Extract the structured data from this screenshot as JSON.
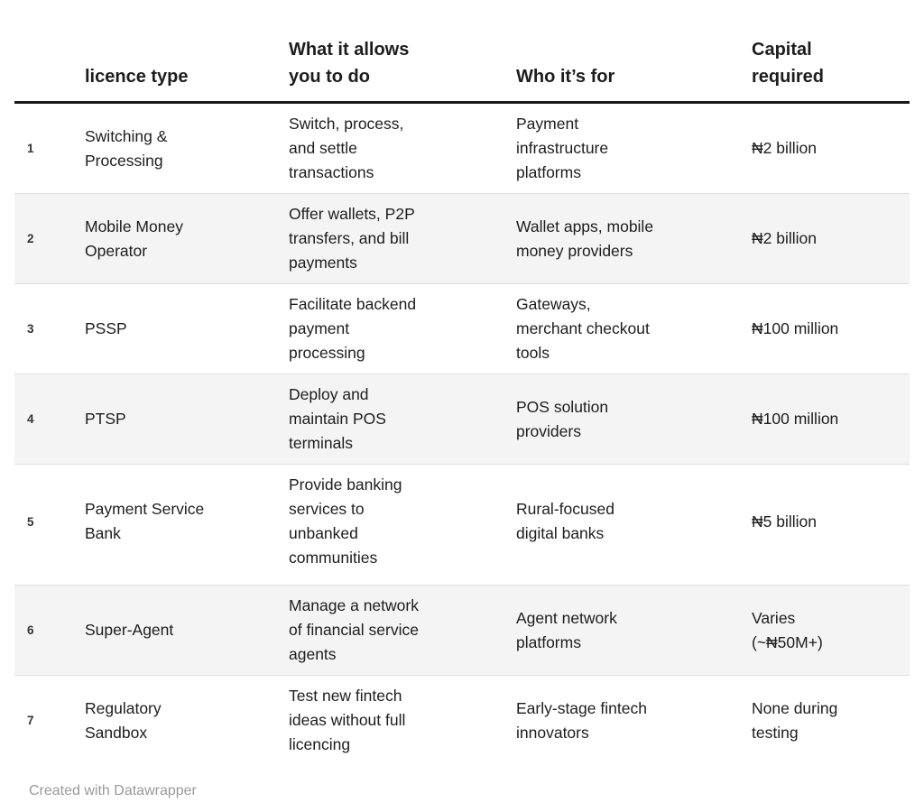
{
  "colors": {
    "text": "#1d1d1d",
    "muted": "#9a9a9a",
    "stripe": "#f4f4f4",
    "divider": "#dedede",
    "rule": "#191919",
    "bg": "#ffffff"
  },
  "table": {
    "columns": [
      {
        "key": "num",
        "label": ""
      },
      {
        "key": "licence_type",
        "label": "licence type"
      },
      {
        "key": "allows",
        "label": "What it allows\nyou to do"
      },
      {
        "key": "who",
        "label": "Who it’s for"
      },
      {
        "key": "capital",
        "label": "Capital\nrequired"
      }
    ],
    "rows": [
      {
        "num": "1",
        "licence_type": "Switching &\nProcessing",
        "allows": "Switch, process,\nand settle\ntransactions",
        "who": "Payment\ninfrastructure\nplatforms",
        "capital": "₦2 billion"
      },
      {
        "num": "2",
        "licence_type": "Mobile Money\nOperator",
        "allows": "Offer wallets, P2P\ntransfers, and bill\npayments",
        "who": "Wallet apps, mobile\nmoney providers",
        "capital": "₦2 billion"
      },
      {
        "num": "3",
        "licence_type": "PSSP",
        "allows": "Facilitate backend\npayment\nprocessing",
        "who": "Gateways,\nmerchant checkout\ntools",
        "capital": "₦100 million"
      },
      {
        "num": "4",
        "licence_type": "PTSP",
        "allows": "Deploy and\nmaintain POS\nterminals",
        "who": "POS solution\nproviders",
        "capital": "₦100 million"
      },
      {
        "num": "5",
        "licence_type": "Payment Service\nBank",
        "allows": "Provide banking\nservices to\nunbanked\ncommunities",
        "who": "Rural-focused\ndigital banks",
        "capital": "₦5 billion"
      },
      {
        "num": "6",
        "licence_type": "Super-Agent",
        "allows": "Manage a network\nof financial service\nagents",
        "who": "Agent network\nplatforms",
        "capital": "Varies\n(~₦50M+)"
      },
      {
        "num": "7",
        "licence_type": "Regulatory\nSandbox",
        "allows": "Test new fintech\nideas without full\nlicencing",
        "who": "Early-stage fintech\ninnovators",
        "capital": "None during\ntesting"
      }
    ]
  },
  "footer": {
    "credit": "Created with Datawrapper"
  }
}
